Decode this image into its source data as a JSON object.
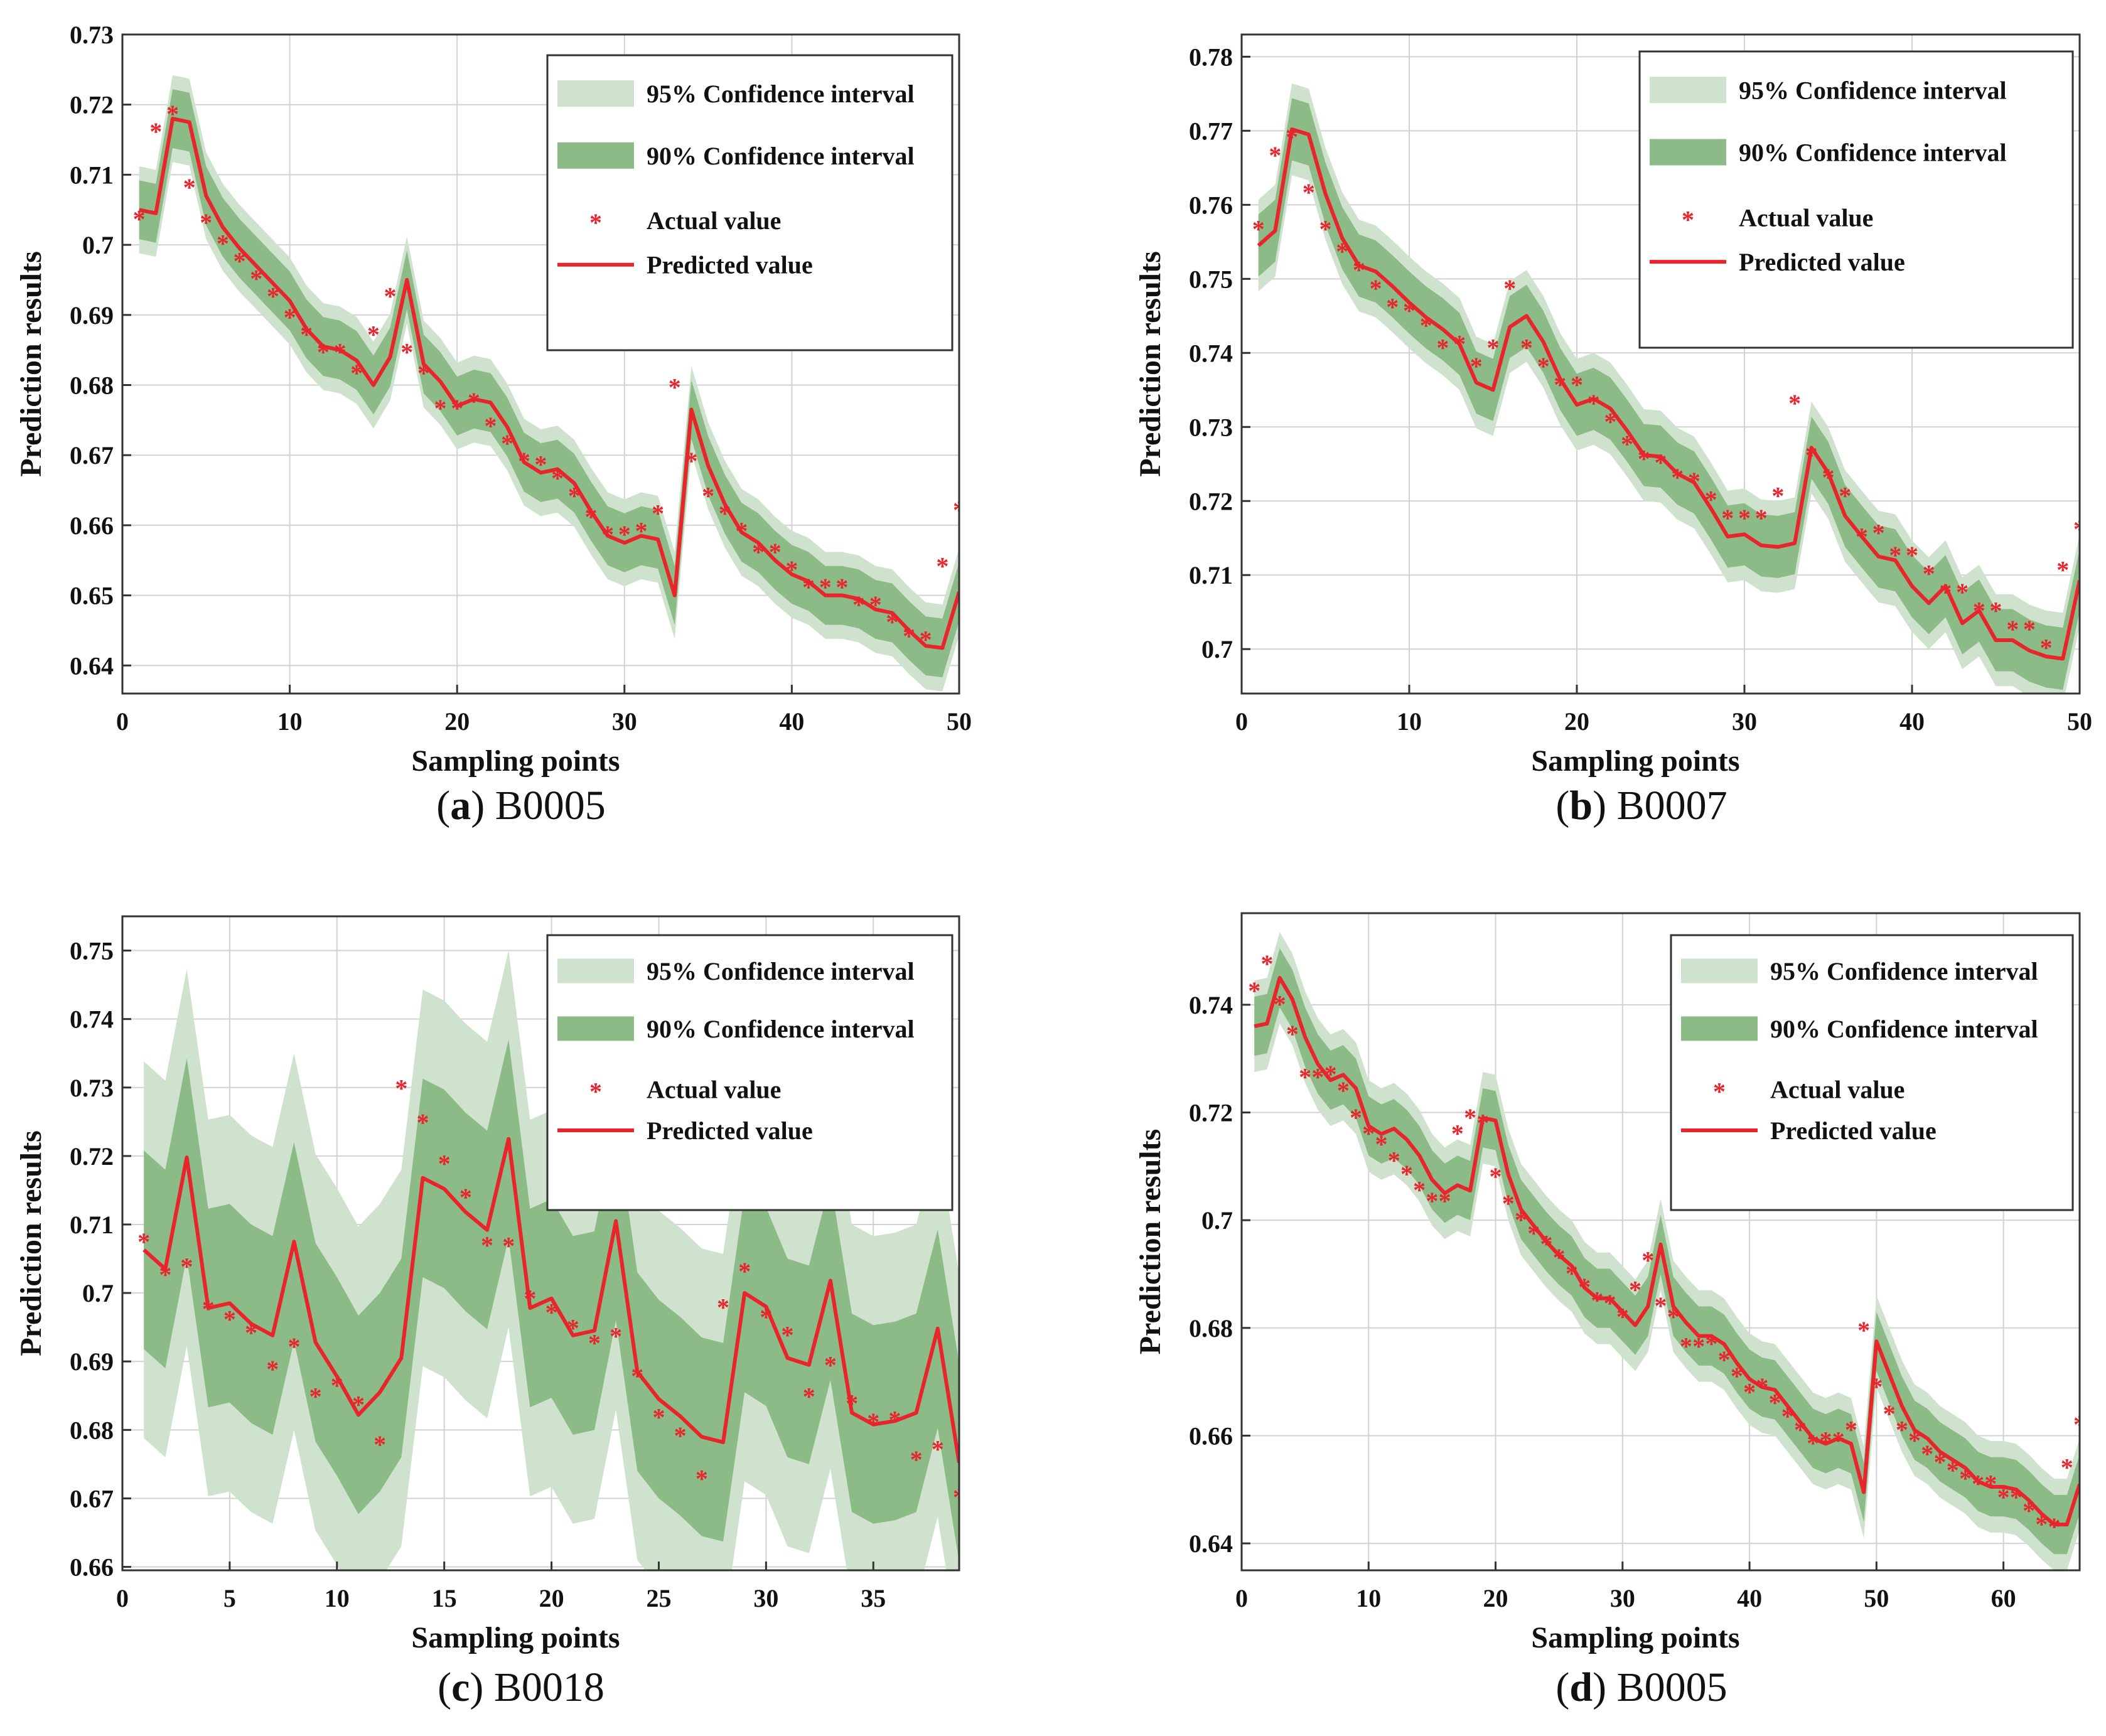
{
  "legend": {
    "ci95": "95% Confidence interval",
    "ci90": "90% Confidence interval",
    "actual": "Actual value",
    "predicted": "Predicted value"
  },
  "colors": {
    "ci95": "#cfe2cd",
    "ci90": "#8cbb88",
    "actual": "#e8242c",
    "predicted": "#e8242c",
    "grid": "#d2d2d2",
    "axis": "#333333"
  },
  "chart_data": [
    {
      "type": "line",
      "id": "a",
      "caption_letter": "a",
      "caption_text": "B0005",
      "xlabel": "Sampling points",
      "ylabel": "Prediction results",
      "xlim": [
        0,
        50
      ],
      "ylim": [
        0.636,
        0.73
      ],
      "xticks": [
        0,
        10,
        20,
        30,
        40,
        50
      ],
      "xtick_labels": [
        "0",
        "10",
        "20",
        "30",
        "40",
        "50"
      ],
      "yticks": [
        0.64,
        0.65,
        0.66,
        0.67,
        0.68,
        0.69,
        0.7,
        0.71,
        0.72,
        0.73
      ],
      "ytick_labels": [
        "0.64",
        "0.65",
        "0.66",
        "0.67",
        "0.68",
        "0.69",
        "0.7",
        "0.71",
        "0.72",
        "0.73"
      ],
      "x": [
        1,
        2,
        3,
        4,
        5,
        6,
        7,
        8,
        9,
        10,
        11,
        12,
        13,
        14,
        15,
        16,
        17,
        18,
        19,
        20,
        21,
        22,
        23,
        24,
        25,
        26,
        27,
        28,
        29,
        30,
        31,
        32,
        33,
        34,
        35,
        36,
        37,
        38,
        39,
        40,
        41,
        42,
        43,
        44,
        45,
        46,
        47,
        48,
        49,
        50
      ],
      "series": [
        {
          "name": "Predicted value",
          "values": [
            0.705,
            0.7045,
            0.718,
            0.7175,
            0.707,
            0.7025,
            0.6995,
            0.697,
            0.6945,
            0.692,
            0.688,
            0.6855,
            0.685,
            0.6835,
            0.68,
            0.684,
            0.695,
            0.683,
            0.6805,
            0.677,
            0.678,
            0.6775,
            0.674,
            0.669,
            0.6675,
            0.668,
            0.666,
            0.662,
            0.6585,
            0.6575,
            0.6585,
            0.658,
            0.65,
            0.6765,
            0.6685,
            0.663,
            0.659,
            0.6575,
            0.655,
            0.653,
            0.652,
            0.65,
            0.65,
            0.6495,
            0.648,
            0.6475,
            0.645,
            0.6428,
            0.6425,
            0.6505
          ]
        },
        {
          "name": "Actual value",
          "values": [
            0.704,
            0.7165,
            0.719,
            0.7085,
            0.7035,
            0.7005,
            0.698,
            0.6955,
            0.693,
            0.69,
            0.6875,
            0.685,
            0.685,
            0.682,
            0.6875,
            0.693,
            0.685,
            0.682,
            0.677,
            0.677,
            0.678,
            0.6745,
            0.672,
            0.6695,
            0.669,
            0.667,
            0.6645,
            0.6615,
            0.659,
            0.659,
            0.6595,
            0.662,
            0.68,
            0.6695,
            0.6645,
            0.662,
            0.6595,
            0.6565,
            0.6565,
            0.654,
            0.6515,
            0.6515,
            0.6515,
            0.649,
            0.649,
            0.6465,
            0.6445,
            0.644,
            0.6545,
            0.6625
          ]
        }
      ],
      "ci90_halfwidth": 0.0042,
      "ci95_halfwidth": 0.0062
    },
    {
      "type": "line",
      "id": "b",
      "caption_letter": "b",
      "caption_text": "B0007",
      "xlabel": "Sampling points",
      "ylabel": "Prediction results",
      "xlim": [
        0,
        50
      ],
      "ylim": [
        0.694,
        0.783
      ],
      "xticks": [
        0,
        10,
        20,
        30,
        40,
        50
      ],
      "xtick_labels": [
        "0",
        "10",
        "20",
        "30",
        "40",
        "50"
      ],
      "yticks": [
        0.7,
        0.71,
        0.72,
        0.73,
        0.74,
        0.75,
        0.76,
        0.77,
        0.78
      ],
      "ytick_labels": [
        "0.7",
        "0.71",
        "0.72",
        "0.73",
        "0.74",
        "0.75",
        "0.76",
        "0.77",
        "0.78"
      ],
      "x": [
        1,
        2,
        3,
        4,
        5,
        6,
        7,
        8,
        9,
        10,
        11,
        12,
        13,
        14,
        15,
        16,
        17,
        18,
        19,
        20,
        21,
        22,
        23,
        24,
        25,
        26,
        27,
        28,
        29,
        30,
        31,
        32,
        33,
        34,
        35,
        36,
        37,
        38,
        39,
        40,
        41,
        42,
        43,
        44,
        45,
        46,
        47,
        48,
        49,
        50
      ],
      "series": [
        {
          "name": "Predicted value",
          "values": [
            0.7545,
            0.7565,
            0.7702,
            0.7695,
            0.7615,
            0.7555,
            0.7518,
            0.751,
            0.749,
            0.7468,
            0.7448,
            0.7432,
            0.7412,
            0.736,
            0.735,
            0.7435,
            0.745,
            0.7415,
            0.7365,
            0.733,
            0.7338,
            0.7325,
            0.7295,
            0.7262,
            0.726,
            0.7237,
            0.7225,
            0.719,
            0.7152,
            0.7155,
            0.714,
            0.7138,
            0.7143,
            0.7272,
            0.7238,
            0.718,
            0.7152,
            0.7125,
            0.712,
            0.7085,
            0.7062,
            0.7085,
            0.7035,
            0.7052,
            0.7012,
            0.7012,
            0.6998,
            0.699,
            0.6987,
            0.7093
          ]
        },
        {
          "name": "Actual value",
          "values": [
            0.757,
            0.767,
            0.7695,
            0.762,
            0.757,
            0.754,
            0.7515,
            0.749,
            0.7465,
            0.746,
            0.744,
            0.741,
            0.7415,
            0.7385,
            0.741,
            0.749,
            0.741,
            0.7385,
            0.736,
            0.736,
            0.7335,
            0.731,
            0.728,
            0.726,
            0.7255,
            0.7235,
            0.723,
            0.7205,
            0.718,
            0.718,
            0.718,
            0.721,
            0.7335,
            0.7265,
            0.7235,
            0.721,
            0.7155,
            0.716,
            0.713,
            0.713,
            0.7105,
            0.708,
            0.708,
            0.7055,
            0.7055,
            0.703,
            0.703,
            0.7005,
            0.711,
            0.7165
          ]
        }
      ],
      "ci90_halfwidth": 0.0042,
      "ci95_halfwidth": 0.0062
    },
    {
      "type": "line",
      "id": "c",
      "caption_letter": "c",
      "caption_text": "B0018",
      "xlabel": "Sampling points",
      "ylabel": "Prediction results",
      "xlim": [
        0,
        39
      ],
      "ylim": [
        0.6595,
        0.755
      ],
      "xticks": [
        0,
        5,
        10,
        15,
        20,
        25,
        30,
        35
      ],
      "xtick_labels": [
        "0",
        "5",
        "10",
        "15",
        "20",
        "25",
        "30",
        "35"
      ],
      "yticks": [
        0.66,
        0.67,
        0.68,
        0.69,
        0.7,
        0.71,
        0.72,
        0.73,
        0.74,
        0.75
      ],
      "ytick_labels": [
        "0.66",
        "0.67",
        "0.68",
        "0.69",
        "0.7",
        "0.71",
        "0.72",
        "0.73",
        "0.74",
        "0.75"
      ],
      "x": [
        1,
        2,
        3,
        4,
        5,
        6,
        7,
        8,
        9,
        10,
        11,
        12,
        13,
        14,
        15,
        16,
        17,
        18,
        19,
        20,
        21,
        22,
        23,
        24,
        25,
        26,
        27,
        28,
        29,
        30,
        31,
        32,
        33,
        34,
        35,
        36,
        37,
        38,
        39
      ],
      "series": [
        {
          "name": "Predicted value",
          "values": [
            0.7063,
            0.7035,
            0.7198,
            0.6978,
            0.6985,
            0.6955,
            0.6938,
            0.7075,
            0.6928,
            0.6878,
            0.6822,
            0.6855,
            0.6905,
            0.7168,
            0.7152,
            0.7118,
            0.7092,
            0.7225,
            0.6978,
            0.6992,
            0.6938,
            0.6945,
            0.7105,
            0.6885,
            0.6845,
            0.682,
            0.679,
            0.6782,
            0.7,
            0.698,
            0.6905,
            0.6895,
            0.7018,
            0.6825,
            0.6808,
            0.6813,
            0.6825,
            0.6948,
            0.6752
          ]
        },
        {
          "name": "Actual value",
          "values": [
            0.7078,
            0.703,
            0.7042,
            0.698,
            0.6965,
            0.6945,
            0.6892,
            0.6925,
            0.6852,
            0.6868,
            0.684,
            0.6782,
            0.7302,
            0.7252,
            0.7192,
            0.7143,
            0.7073,
            0.7072,
            0.6995,
            0.6975,
            0.6952,
            0.693,
            0.694,
            0.6882,
            0.6822,
            0.6795,
            0.6732,
            0.6982,
            0.7035,
            0.6968,
            0.6942,
            0.6852,
            0.6898,
            0.6842,
            0.6815,
            0.6818,
            0.676,
            0.6775,
            0.6705
          ]
        }
      ],
      "ci90_halfwidth": 0.0145,
      "ci95_halfwidth": 0.0275
    },
    {
      "type": "line",
      "id": "d",
      "caption_letter": "d",
      "caption_text": "B0005",
      "xlabel": "Sampling points",
      "ylabel": "Prediction results",
      "xlim": [
        0,
        66
      ],
      "ylim": [
        0.635,
        0.757
      ],
      "xticks": [
        0,
        10,
        20,
        30,
        40,
        50,
        60
      ],
      "xtick_labels": [
        "0",
        "10",
        "20",
        "30",
        "40",
        "50",
        "60"
      ],
      "yticks": [
        0.64,
        0.66,
        0.68,
        0.7,
        0.72,
        0.74
      ],
      "ytick_labels": [
        "0.64",
        "0.66",
        "0.68",
        "0.7",
        "0.72",
        "0.74"
      ],
      "x": [
        1,
        2,
        3,
        4,
        5,
        6,
        7,
        8,
        9,
        10,
        11,
        12,
        13,
        14,
        15,
        16,
        17,
        18,
        19,
        20,
        21,
        22,
        23,
        24,
        25,
        26,
        27,
        28,
        29,
        30,
        31,
        32,
        33,
        34,
        35,
        36,
        37,
        38,
        39,
        40,
        41,
        42,
        43,
        44,
        45,
        46,
        47,
        48,
        49,
        50,
        51,
        52,
        53,
        54,
        55,
        56,
        57,
        58,
        59,
        60,
        61,
        62,
        63,
        64,
        65,
        66
      ],
      "series": [
        {
          "name": "Predicted value",
          "values": [
            0.736,
            0.7365,
            0.745,
            0.741,
            0.734,
            0.729,
            0.726,
            0.727,
            0.7245,
            0.7175,
            0.716,
            0.717,
            0.715,
            0.712,
            0.7075,
            0.705,
            0.7065,
            0.7055,
            0.719,
            0.7185,
            0.7085,
            0.702,
            0.699,
            0.696,
            0.6935,
            0.6915,
            0.6875,
            0.6855,
            0.6855,
            0.683,
            0.6805,
            0.684,
            0.6955,
            0.684,
            0.681,
            0.6785,
            0.6785,
            0.677,
            0.6735,
            0.6705,
            0.669,
            0.6685,
            0.6655,
            0.6625,
            0.6595,
            0.6585,
            0.6595,
            0.6585,
            0.6495,
            0.6775,
            0.6715,
            0.6655,
            0.661,
            0.6595,
            0.657,
            0.6555,
            0.654,
            0.6515,
            0.6505,
            0.6505,
            0.65,
            0.648,
            0.6455,
            0.6435,
            0.6435,
            0.651
          ]
        },
        {
          "name": "Actual value",
          "values": [
            0.743,
            0.748,
            0.7405,
            0.735,
            0.727,
            0.727,
            0.7275,
            0.7245,
            0.7195,
            0.7165,
            0.7145,
            0.7115,
            0.709,
            0.706,
            0.704,
            0.704,
            0.7165,
            0.7195,
            0.7185,
            0.7085,
            0.7035,
            0.7005,
            0.698,
            0.696,
            0.6935,
            0.6905,
            0.688,
            0.6855,
            0.685,
            0.6825,
            0.6875,
            0.693,
            0.6845,
            0.6825,
            0.677,
            0.677,
            0.6775,
            0.6745,
            0.6715,
            0.6685,
            0.6695,
            0.6665,
            0.664,
            0.6615,
            0.659,
            0.6595,
            0.6595,
            0.6615,
            0.68,
            0.6695,
            0.6645,
            0.6615,
            0.6595,
            0.657,
            0.6555,
            0.654,
            0.6525,
            0.6515,
            0.6515,
            0.649,
            0.649,
            0.6465,
            0.644,
            0.6435,
            0.6545,
            0.6625
          ]
        }
      ],
      "ci90_halfwidth": 0.0055,
      "ci95_halfwidth": 0.0085
    }
  ]
}
